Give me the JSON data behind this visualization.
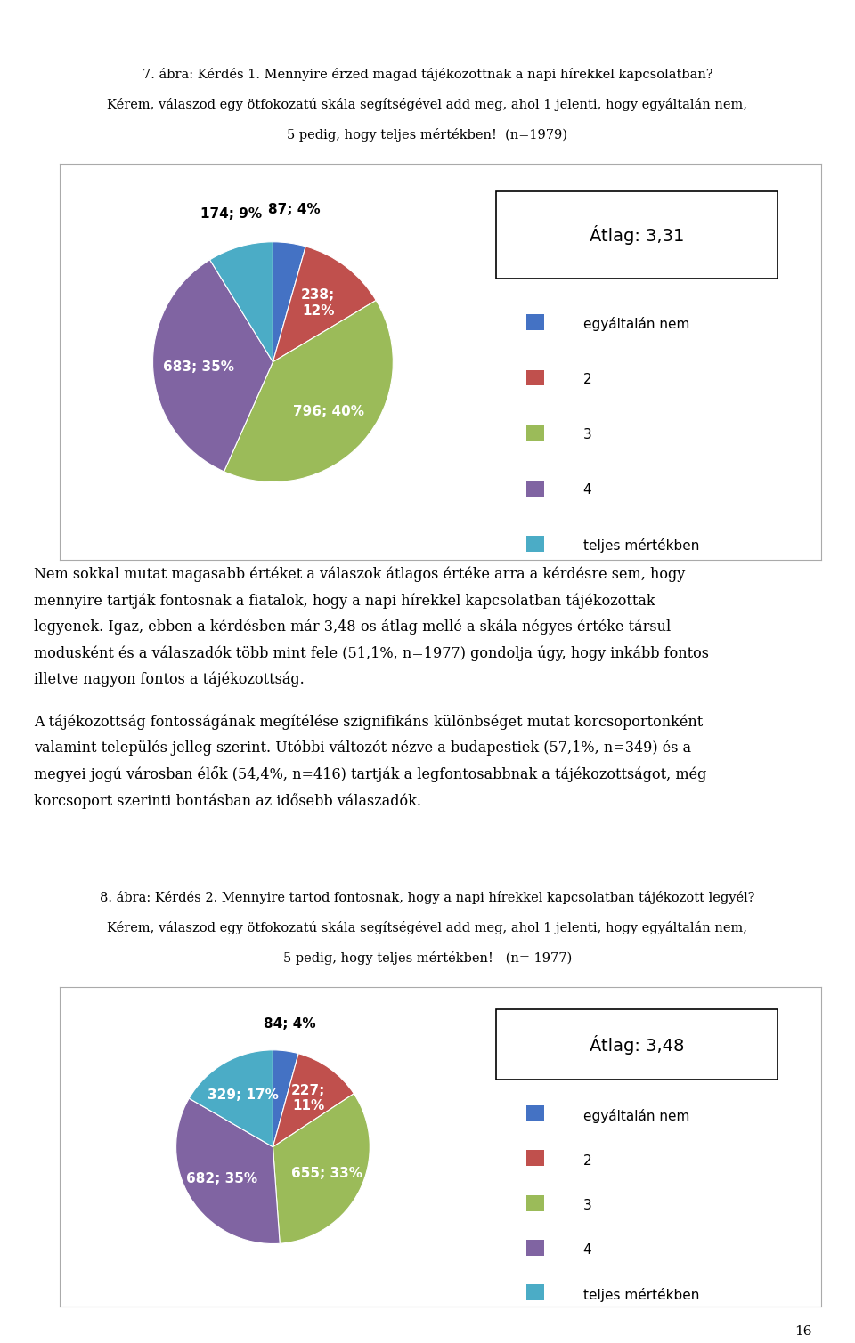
{
  "title1_line1": "7. ábra: Kérdés 1. Mennyire érzed magad tájékozottnak a napi hírekkel kapcsolatban?",
  "title1_line2": "Kérem, válaszod egy ötfokozatú skála segítségével add meg, ahol 1 jelenti, hogy egyáltalán nem,",
  "title1_line3": "5 pedig, hogy teljes mértékben!  (n=1979)",
  "chart1_values": [
    87,
    238,
    796,
    683,
    174
  ],
  "chart1_pct": [
    "4%",
    "12%",
    "40%",
    "35%",
    "9%"
  ],
  "chart1_labels_inside": [
    "238;\n12%",
    "796; 40%",
    "683; 35%"
  ],
  "chart1_labels_outside": [
    "87; 4%",
    "174; 9%"
  ],
  "chart1_colors": [
    "#4472C4",
    "#C0504D",
    "#9BBB59",
    "#8064A2",
    "#4BACC6"
  ],
  "chart1_avg": "Átlag: 3,31",
  "legend_labels": [
    "egyáltalán nem",
    "2",
    "3",
    "4",
    "teljes mértékben"
  ],
  "chart1_startangle": 90,
  "body_lines_p1": [
    "Nem sokkal mutat magasabb értéket a válaszok átlagos értéke arra a kérdésre sem, hogy",
    "mennyire tartják fontosnak a fiatalok, hogy a napi hírekkel kapcsolatban tájékozottak",
    "legyenek. Igaz, ebben a kérdésben már 3,48-os átlag mellé a skála négyes értéke társul",
    "modusként és a válaszadók több mint fele (51,1%, n=1977) gondolja úgy, hogy inkább fontos",
    "illetve nagyon fontos a tájékozottság."
  ],
  "body_lines_p2": [
    "A tájékozottság fontosságának megítélése szignifikáns különbséget mutat korcsoportonként",
    "valamint település jelleg szerint. Utóbbi változót nézve a budapestiek (57,1%, n=349) és a",
    "megyei jogú városban élők (54,4%, n=416) tartják a legfontosabbnak a tájékozottságot, még",
    "korcsoport szerinti bontásban az idősebb válaszadók."
  ],
  "title2_line1": "8. ábra: Kérdés 2. Mennyire tartod fontosnak, hogy a napi hírekkel kapcsolatban tájékozott legyél?",
  "title2_line2": "Kérem, válaszod egy ötfokozatú skála segítségével add meg, ahol 1 jelenti, hogy egyáltalán nem,",
  "title2_line3": "5 pedig, hogy teljes mértékben!   (n= 1977)",
  "chart2_values": [
    84,
    227,
    655,
    682,
    329
  ],
  "chart2_colors": [
    "#4472C4",
    "#C0504D",
    "#9BBB59",
    "#8064A2",
    "#4BACC6"
  ],
  "chart2_avg": "Átlag: 3,48",
  "chart2_startangle": 90,
  "page_number": "16",
  "bg_color": "#FFFFFF",
  "box_edge_color": "#000000",
  "text_color": "#000000",
  "font_size_title": 10.5,
  "font_size_body": 11.5,
  "font_size_avg": 14,
  "font_size_legend": 11,
  "font_size_pie_label": 11
}
